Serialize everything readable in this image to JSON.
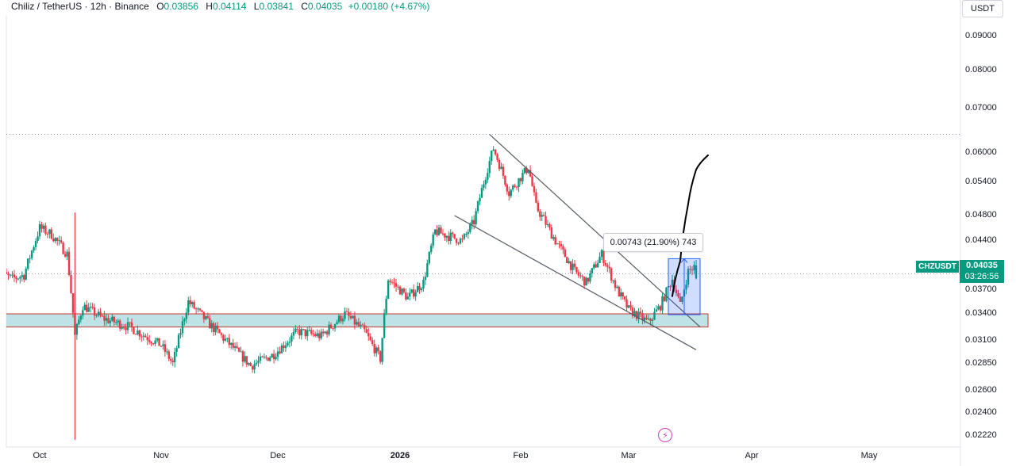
{
  "header": {
    "symbol": "Chiliz / TetherUS · 12h · Binance",
    "o_label": "O",
    "o_value": "0.03856",
    "h_label": "H",
    "h_value": "0.04114",
    "l_label": "L",
    "l_value": "0.03841",
    "c_label": "C",
    "c_value": "0.04035",
    "change": "+0.00180 (+4.67%)"
  },
  "currency_button": "USDT",
  "price_scale": [
    "0.09000",
    "0.08000",
    "0.07000",
    "0.06000",
    "0.05400",
    "0.04800",
    "0.04400",
    "0.03700",
    "0.03400",
    "0.03100",
    "0.02850",
    "0.02600",
    "0.02400",
    "0.02220"
  ],
  "time_axis": [
    {
      "label": "Oct",
      "bold": false
    },
    {
      "label": "Nov",
      "bold": false
    },
    {
      "label": "Dec",
      "bold": false
    },
    {
      "label": "2026",
      "bold": true
    },
    {
      "label": "Feb",
      "bold": false
    },
    {
      "label": "Mar",
      "bold": false
    },
    {
      "label": "Apr",
      "bold": false
    },
    {
      "label": "May",
      "bold": false
    }
  ],
  "symbol_tag": "CHZUSDT",
  "last_price": "0.04035",
  "countdown": "03:26:56",
  "measure_label": "0.00743 (21.90%) 743",
  "colors": {
    "up": "#089981",
    "down": "#f23645",
    "support_zone": "#a8d8dc",
    "support_border": "#c0392b",
    "measure_box": "#2962ff",
    "trendline": "#555a64",
    "drawing": "#000000"
  },
  "icons": {
    "flash": "flash-icon"
  },
  "chart_data": {
    "type": "candlestick",
    "title": "Chiliz / TetherUS · 12h · Binance",
    "y_scale": "log",
    "ylim": [
      0.0215,
      0.095
    ],
    "x_range": [
      "2025-09-20",
      "2026-05-10"
    ],
    "last_close": 0.04035,
    "ohlc_last": {
      "open": 0.03856,
      "high": 0.04114,
      "low": 0.03841,
      "close": 0.04035
    },
    "close_path": [
      [
        "2025-09-20",
        0.0395
      ],
      [
        "2025-09-24",
        0.0385
      ],
      [
        "2025-09-27",
        0.039
      ],
      [
        "2025-10-01",
        0.046
      ],
      [
        "2025-10-04",
        0.045
      ],
      [
        "2025-10-08",
        0.042
      ],
      [
        "2025-10-10",
        0.0315
      ],
      [
        "2025-10-12",
        0.035
      ],
      [
        "2025-10-17",
        0.0335
      ],
      [
        "2025-10-24",
        0.0325
      ],
      [
        "2025-11-01",
        0.0305
      ],
      [
        "2025-11-04",
        0.0285
      ],
      [
        "2025-11-08",
        0.0355
      ],
      [
        "2025-11-13",
        0.033
      ],
      [
        "2025-11-20",
        0.03
      ],
      [
        "2025-11-24",
        0.0283
      ],
      [
        "2025-11-30",
        0.0295
      ],
      [
        "2025-12-06",
        0.032
      ],
      [
        "2025-12-12",
        0.0315
      ],
      [
        "2025-12-18",
        0.034
      ],
      [
        "2025-12-23",
        0.032
      ],
      [
        "2025-12-27",
        0.029
      ],
      [
        "2025-12-29",
        0.0385
      ],
      [
        "2026-01-03",
        0.036
      ],
      [
        "2026-01-07",
        0.038
      ],
      [
        "2026-01-10",
        0.0455
      ],
      [
        "2026-01-17",
        0.044
      ],
      [
        "2026-01-20",
        0.047
      ],
      [
        "2026-01-25",
        0.061
      ],
      [
        "2026-01-29",
        0.052
      ],
      [
        "2026-02-03",
        0.057
      ],
      [
        "2026-02-05",
        0.0495
      ],
      [
        "2026-02-10",
        0.044
      ],
      [
        "2026-02-15",
        0.0395
      ],
      [
        "2026-02-18",
        0.038
      ],
      [
        "2026-02-22",
        0.042
      ],
      [
        "2026-02-26",
        0.037
      ],
      [
        "2026-03-01",
        0.0345
      ],
      [
        "2026-03-06",
        0.033
      ],
      [
        "2026-03-09",
        0.035
      ],
      [
        "2026-03-12",
        0.0385
      ],
      [
        "2026-03-14",
        0.035
      ],
      [
        "2026-03-16",
        0.0395
      ],
      [
        "2026-03-18",
        0.04035
      ]
    ],
    "support_zone": {
      "from": "2025-09-20",
      "to": "2026-03-21",
      "low": 0.0325,
      "high": 0.034
    },
    "dotted_levels": [
      0.064,
      0.0392
    ],
    "trendlines": [
      {
        "from": [
          "2026-01-24",
          0.064
        ],
        "to": [
          "2026-03-19",
          0.0325
        ]
      },
      {
        "from": [
          "2026-01-15",
          0.048
        ],
        "to": [
          "2026-03-18",
          0.03
        ]
      }
    ],
    "measure": {
      "from": "2026-03-11",
      "to": "2026-03-19",
      "low": 0.0339,
      "high": 0.04133,
      "delta": 0.00743,
      "percent": 21.9,
      "ticks": 743
    },
    "projection": [
      [
        "2026-03-12",
        0.0362
      ],
      [
        "2026-03-14",
        0.041
      ],
      [
        "2026-03-16",
        0.05
      ],
      [
        "2026-03-18",
        0.0565
      ],
      [
        "2026-03-21",
        0.0595
      ]
    ],
    "xlabel": "",
    "ylabel": ""
  }
}
